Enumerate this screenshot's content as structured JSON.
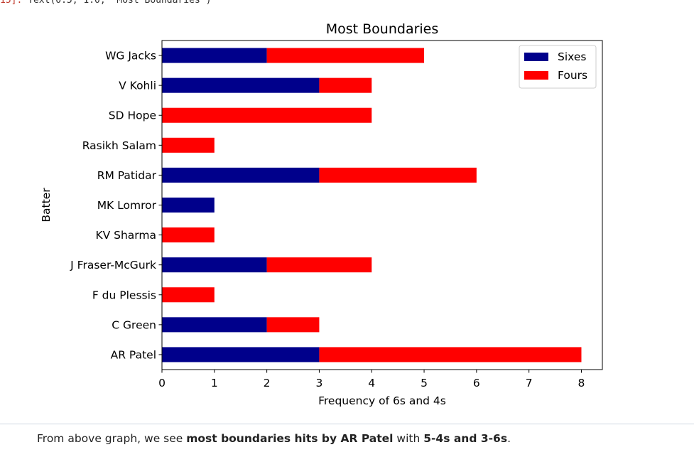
{
  "output_prompt": "15]:",
  "output_text": "Text(0.5, 1.0, 'Most Boundaries')",
  "chart_data": {
    "type": "bar",
    "orientation": "horizontal",
    "stacked": true,
    "title": "Most Boundaries",
    "xlabel": "Frequency of 6s and 4s",
    "ylabel": "Batter",
    "xlim": [
      0,
      8.4
    ],
    "xticks": [
      0,
      1,
      2,
      3,
      4,
      5,
      6,
      7,
      8
    ],
    "categories": [
      "AR Patel",
      "C Green",
      "F du Plessis",
      "J Fraser-McGurk",
      "KV Sharma",
      "MK Lomror",
      "RM Patidar",
      "Rasikh Salam",
      "SD Hope",
      "V Kohli",
      "WG Jacks"
    ],
    "series": [
      {
        "name": "Sixes",
        "color": "#00008b",
        "values": [
          3,
          2,
          0,
          2,
          0,
          1,
          3,
          0,
          0,
          3,
          2
        ]
      },
      {
        "name": "Fours",
        "color": "#ff0000",
        "values": [
          5,
          1,
          1,
          2,
          1,
          0,
          3,
          1,
          4,
          1,
          3
        ]
      }
    ],
    "legend": "top-right",
    "grid": false
  },
  "caption": {
    "prefix": "From above graph, we see ",
    "bold1": "most boundaries hits by AR Patel",
    "middle": " with ",
    "bold2": "5-4s and 3-6s",
    "suffix": "."
  }
}
